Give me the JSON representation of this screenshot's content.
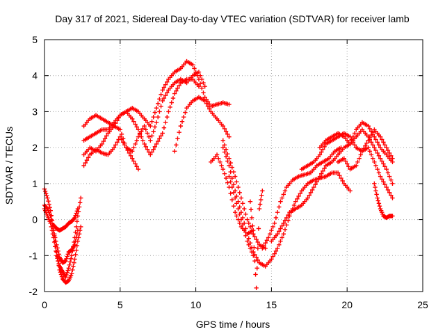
{
  "chart_data": {
    "type": "scatter",
    "title": "Day 317 of 2021, Sidereal Day-to-day VTEC variation (SDTVAR) for receiver lamb",
    "xlabel": "GPS time / hours",
    "ylabel": "SDTVAR / TECUs",
    "xlim": [
      0,
      25
    ],
    "ylim": [
      -2,
      5
    ],
    "xticks": [
      "0",
      "5",
      "10",
      "15",
      "20",
      "25"
    ],
    "yticks": [
      "-2",
      "-1",
      "0",
      "1",
      "2",
      "3",
      "4",
      "5"
    ],
    "grid": true,
    "marker": "plus",
    "color": "#ff0000",
    "series": [
      {
        "x": [
          0.0,
          0.2,
          0.4,
          0.6,
          0.8,
          1.0,
          1.2,
          1.4,
          1.6,
          1.8,
          2.0,
          2.2,
          2.4
        ],
        "y": [
          0.85,
          0.6,
          0.25,
          -0.3,
          -0.9,
          -1.4,
          -1.65,
          -1.75,
          -1.7,
          -1.5,
          -1.1,
          -0.6,
          -0.2
        ]
      },
      {
        "x": [
          0.0,
          0.2,
          0.4,
          0.6,
          0.8,
          1.0,
          1.2,
          1.4,
          1.6,
          1.8,
          2.0,
          2.2
        ],
        "y": [
          0.4,
          0.3,
          0.1,
          -0.3,
          -0.7,
          -1.05,
          -1.2,
          -1.15,
          -0.9,
          -0.85,
          -0.7,
          -0.3
        ]
      },
      {
        "x": [
          0.0,
          0.2,
          0.4,
          0.6,
          0.8,
          1.0,
          1.2,
          1.4,
          1.6,
          1.8,
          2.0,
          2.2,
          2.4
        ],
        "y": [
          0.3,
          0.1,
          -0.1,
          -0.5,
          -1.0,
          -1.3,
          -1.45,
          -1.6,
          -1.35,
          -1.0,
          -0.5,
          0.1,
          0.6
        ]
      },
      {
        "x": [
          0.6,
          0.8,
          1.0,
          1.2,
          1.4,
          1.6,
          1.8,
          2.0,
          2.2
        ],
        "y": [
          -0.15,
          -0.25,
          -0.3,
          -0.25,
          -0.2,
          -0.1,
          -0.05,
          0.05,
          0.3
        ]
      },
      {
        "x": [
          2.6,
          3.0,
          3.4,
          3.8,
          4.2,
          4.6,
          5.0,
          5.4,
          5.8,
          6.2,
          6.6,
          7.0,
          7.4,
          7.8,
          8.2,
          8.6,
          9.0,
          9.4,
          9.8,
          10.2,
          10.6,
          11.0,
          11.4,
          11.8,
          12.2
        ],
        "y": [
          2.6,
          2.8,
          2.9,
          2.8,
          2.7,
          2.6,
          2.9,
          3.0,
          3.1,
          3.0,
          2.8,
          2.6,
          3.1,
          3.6,
          3.9,
          4.1,
          4.2,
          4.4,
          4.3,
          3.9,
          3.4,
          3.15,
          3.2,
          3.25,
          3.2
        ]
      },
      {
        "x": [
          2.6,
          3.0,
          3.4,
          3.8,
          4.2,
          4.6,
          5.0,
          5.4,
          5.8,
          6.2,
          6.6,
          7.0,
          7.4,
          7.8,
          8.2,
          8.6,
          9.0,
          9.4,
          9.8,
          10.2
        ],
        "y": [
          2.2,
          2.3,
          2.4,
          2.5,
          2.5,
          2.7,
          2.9,
          3.0,
          2.8,
          2.5,
          2.1,
          1.8,
          2.1,
          2.4,
          3.0,
          3.5,
          3.8,
          3.9,
          3.9,
          3.7
        ]
      },
      {
        "x": [
          2.6,
          3.0,
          3.4,
          3.8,
          4.2,
          4.6,
          5.0,
          5.4,
          5.8,
          6.2,
          6.6,
          7.0,
          7.4,
          7.8,
          8.2,
          8.6,
          9.0,
          9.4,
          9.8,
          10.2,
          10.6
        ],
        "y": [
          1.8,
          2.0,
          1.9,
          2.1,
          2.4,
          2.6,
          2.5,
          2.0,
          1.9,
          2.3,
          2.6,
          2.2,
          2.7,
          3.3,
          3.6,
          3.8,
          3.9,
          3.8,
          4.0,
          4.1,
          3.7
        ]
      },
      {
        "x": [
          2.6,
          3.0,
          3.4,
          3.8,
          4.2,
          4.6,
          5.0,
          5.4,
          5.8,
          6.2
        ],
        "y": [
          1.5,
          1.8,
          1.95,
          1.85,
          1.8,
          2.0,
          2.3,
          2.0,
          1.7,
          1.4
        ]
      },
      {
        "x": [
          8.6,
          9.0,
          9.4,
          9.8,
          10.2,
          10.6,
          11.0,
          11.4,
          11.8,
          12.2
        ],
        "y": [
          1.9,
          2.6,
          3.1,
          3.3,
          3.4,
          3.3,
          3.0,
          2.8,
          2.6,
          2.3
        ]
      },
      {
        "x": [
          11.0,
          11.4,
          11.8,
          12.2,
          12.6,
          13.0,
          13.4,
          13.8
        ],
        "y": [
          1.6,
          1.8,
          1.4,
          0.9,
          0.2,
          -0.2,
          -0.4,
          -0.3
        ]
      },
      {
        "x": [
          11.8,
          12.2,
          12.6,
          13.0,
          13.4,
          13.8,
          14.2,
          14.6
        ],
        "y": [
          2.2,
          1.7,
          1.2,
          0.6,
          0.0,
          -0.4,
          -0.7,
          -0.8
        ]
      },
      {
        "x": [
          12.2,
          12.6,
          13.0,
          13.4,
          13.8
        ],
        "y": [
          1.2,
          0.6,
          0.0,
          -0.6,
          -1.0
        ]
      },
      {
        "x": [
          11.8,
          12.2,
          12.6,
          13.0,
          13.4,
          13.8,
          14.2,
          14.6,
          15.0,
          15.4,
          15.8,
          16.2,
          16.6,
          17.0,
          17.4,
          17.8,
          18.2,
          18.6,
          19.0,
          19.4,
          19.8,
          20.2
        ],
        "y": [
          2.0,
          1.5,
          0.8,
          0.2,
          -0.4,
          -0.9,
          -1.2,
          -1.3,
          -1.1,
          -0.8,
          -0.4,
          0.1,
          0.5,
          0.8,
          1.0,
          1.1,
          1.15,
          1.2,
          1.3,
          1.3,
          1.0,
          0.8
        ]
      },
      {
        "x": [
          13.6,
          13.8,
          14.0,
          14.2,
          14.4
        ],
        "y": [
          0.5,
          -0.4,
          -1.9,
          0.3,
          0.8
        ]
      },
      {
        "x": [
          14.4,
          14.8,
          15.2,
          15.6,
          16.0,
          16.4,
          16.8,
          17.2,
          17.6,
          18.0,
          18.4,
          18.8,
          19.2,
          19.6
        ],
        "y": [
          -0.8,
          -0.5,
          -0.1,
          0.5,
          0.9,
          1.1,
          1.2,
          1.25,
          1.3,
          1.5,
          1.6,
          1.7,
          1.9,
          2.0
        ]
      },
      {
        "x": [
          15.0,
          15.4,
          15.8,
          16.2,
          16.6,
          17.0,
          17.4,
          17.8,
          18.2,
          18.6,
          19.0,
          19.4,
          19.8,
          20.2,
          20.6,
          21.0,
          21.4,
          21.8,
          22.2,
          22.6,
          23.0
        ],
        "y": [
          -0.6,
          -0.4,
          -0.1,
          0.2,
          0.3,
          0.4,
          0.6,
          0.9,
          1.2,
          1.5,
          1.6,
          1.8,
          2.0,
          2.1,
          2.3,
          2.5,
          2.3,
          2.0,
          1.7,
          1.4,
          1.0
        ]
      },
      {
        "x": [
          17.0,
          17.4,
          17.8,
          18.2,
          18.6,
          19.0,
          19.4,
          19.8,
          20.2,
          20.6,
          21.0,
          21.4,
          21.8,
          22.2,
          22.6,
          23.0
        ],
        "y": [
          1.4,
          1.5,
          1.6,
          1.8,
          2.1,
          2.2,
          2.3,
          2.4,
          2.3,
          2.0,
          1.9,
          2.2,
          2.5,
          2.3,
          2.0,
          1.7
        ]
      },
      {
        "x": [
          18.2,
          18.6,
          19.0,
          19.4,
          19.8,
          20.2,
          20.6,
          21.0,
          21.4,
          21.8,
          22.2,
          22.6,
          23.0
        ],
        "y": [
          2.0,
          2.2,
          2.3,
          2.4,
          2.3,
          2.1,
          2.5,
          2.7,
          2.6,
          2.3,
          2.0,
          1.8,
          1.6
        ]
      },
      {
        "x": [
          19.4,
          19.8,
          20.2,
          20.6,
          21.0,
          21.4,
          21.8,
          22.2,
          22.6,
          23.0
        ],
        "y": [
          1.6,
          1.7,
          1.4,
          1.5,
          1.9,
          2.0,
          1.6,
          1.2,
          0.9,
          0.6
        ]
      },
      {
        "x": [
          21.8,
          22.0,
          22.2,
          22.4,
          22.6,
          22.8,
          23.0
        ],
        "y": [
          1.0,
          0.6,
          0.3,
          0.1,
          0.05,
          0.1,
          0.1
        ]
      }
    ]
  }
}
